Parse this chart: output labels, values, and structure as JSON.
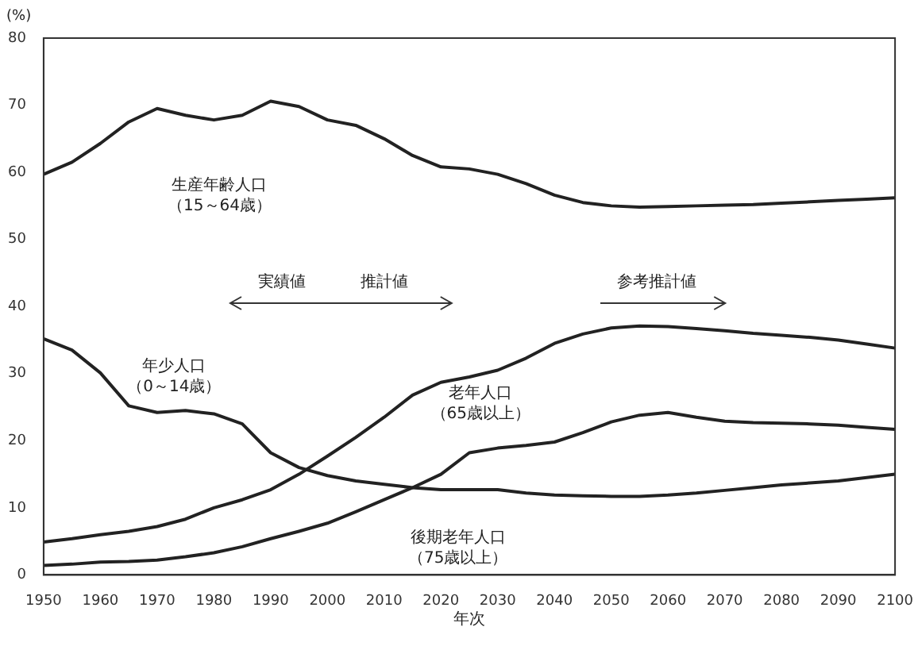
{
  "chart_data": {
    "type": "line",
    "xlabel": "年次",
    "ylabel": "(%)",
    "x": [
      1950,
      1955,
      1960,
      1965,
      1970,
      1975,
      1980,
      1985,
      1990,
      1995,
      2000,
      2005,
      2010,
      2015,
      2020,
      2025,
      2030,
      2035,
      2040,
      2045,
      2050,
      2055,
      2060,
      2065,
      2070,
      2075,
      2080,
      2085,
      2090,
      2095,
      2100
    ],
    "series": [
      {
        "color": "#222222",
        "values": [
          59.7,
          61.5,
          64.3,
          67.5,
          69.5,
          68.5,
          67.8,
          68.5,
          70.6,
          69.8,
          67.8,
          67.0,
          65.0,
          62.5,
          60.8,
          60.5,
          59.7,
          58.3,
          56.6,
          55.5,
          55.0,
          54.8,
          54.9,
          55.0,
          55.1,
          55.2,
          55.4,
          55.6,
          55.8,
          56.0,
          56.2
        ]
      },
      {
        "color": "#222222",
        "values": [
          35.2,
          33.5,
          30.1,
          25.2,
          24.2,
          24.5,
          24.0,
          22.5,
          18.2,
          16.0,
          14.8,
          14.0,
          13.5,
          13.0,
          12.7,
          12.7,
          12.7,
          12.2,
          11.9,
          11.8,
          11.7,
          11.7,
          11.9,
          12.2,
          12.6,
          13.0,
          13.4,
          13.7,
          14.0,
          14.5,
          15.0
        ]
      },
      {
        "color": "#222222",
        "values": [
          4.9,
          5.4,
          6.0,
          6.5,
          7.2,
          8.3,
          10.0,
          11.2,
          12.7,
          15.0,
          17.7,
          20.5,
          23.5,
          26.8,
          28.7,
          29.5,
          30.5,
          32.3,
          34.5,
          35.9,
          36.8,
          37.1,
          37.0,
          36.7,
          36.4,
          36.0,
          35.7,
          35.4,
          35.0,
          34.4,
          33.8
        ]
      },
      {
        "color": "#222222",
        "values": [
          1.4,
          1.6,
          1.9,
          2.0,
          2.2,
          2.7,
          3.3,
          4.2,
          5.4,
          6.5,
          7.7,
          9.4,
          11.2,
          13.0,
          15.0,
          18.2,
          18.9,
          19.3,
          19.8,
          21.2,
          22.8,
          23.8,
          24.2,
          23.5,
          22.9,
          22.7,
          22.6,
          22.5,
          22.3,
          22.0,
          21.7
        ]
      }
    ],
    "annotations": [
      "生産年齢人口（15～64歳）",
      "年少人口（0～14歳）",
      "老年人口（65歳以上）",
      "後期老年人口（75歳以上）",
      "実績値",
      "推計値",
      "参考推計値"
    ],
    "xlim": [
      1950,
      2100
    ],
    "xticks": [
      1950,
      1960,
      1970,
      1980,
      1990,
      2000,
      2010,
      2020,
      2030,
      2040,
      2050,
      2060,
      2070,
      2080,
      2090,
      2100
    ],
    "ylim": [
      0,
      80
    ],
    "yticks": [
      0,
      10,
      20,
      30,
      40,
      50,
      60,
      70,
      80
    ],
    "grid": false,
    "legend": false,
    "marker": "none",
    "line_style": "solid"
  }
}
